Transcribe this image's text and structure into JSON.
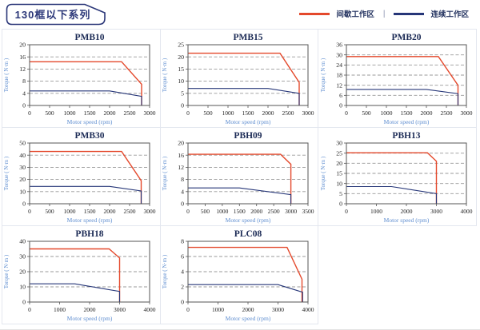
{
  "header": {
    "title": "130框以下系列",
    "legend_separator": "|",
    "legend_items": [
      {
        "label": "间歇工作区",
        "color": "#e4492c"
      },
      {
        "label": "连续工作区",
        "color": "#263678"
      }
    ]
  },
  "colors": {
    "intermittent": "#e4492c",
    "continuous": "#263678",
    "grid_line": "#999999",
    "plot_border": "#555555",
    "tick_text": "#222222",
    "chart_title": "#1b2a55",
    "axis_label": "#5f8ed0",
    "tag_outline": "#2a3678",
    "cell_border": "#e3e7ef"
  },
  "chart_data": [
    {
      "type": "line",
      "title": "PMB10",
      "xlabel": "Motor speed (rpm)",
      "ylabel": "Torque ( N·m )",
      "xlim": [
        0,
        3000
      ],
      "ylim": [
        0,
        20
      ],
      "xticks": [
        0,
        500,
        1000,
        1500,
        2000,
        2500,
        3000
      ],
      "yticks": [
        0,
        4,
        8,
        12,
        16,
        20
      ],
      "series": [
        {
          "name": "间歇工作区",
          "key": "intermittent",
          "points": [
            [
              0,
              14.4
            ],
            [
              2300,
              14.4
            ],
            [
              2800,
              7
            ],
            [
              2800,
              0
            ]
          ]
        },
        {
          "name": "连续工作区",
          "key": "continuous",
          "points": [
            [
              0,
              4.8
            ],
            [
              2000,
              4.8
            ],
            [
              2800,
              3
            ],
            [
              2800,
              0
            ]
          ]
        }
      ]
    },
    {
      "type": "line",
      "title": "PMB15",
      "xlabel": "Motor speed (rpm)",
      "ylabel": "Torque ( N·m )",
      "xlim": [
        0,
        3000
      ],
      "ylim": [
        0,
        25
      ],
      "xticks": [
        0,
        500,
        1000,
        1500,
        2000,
        2500,
        3000
      ],
      "yticks": [
        0,
        5,
        10,
        15,
        20,
        25
      ],
      "series": [
        {
          "name": "间歇工作区",
          "key": "intermittent",
          "points": [
            [
              0,
              21.5
            ],
            [
              2300,
              21.5
            ],
            [
              2780,
              9.5
            ],
            [
              2780,
              0
            ]
          ]
        },
        {
          "name": "连续工作区",
          "key": "continuous",
          "points": [
            [
              0,
              7
            ],
            [
              2000,
              7
            ],
            [
              2780,
              5
            ],
            [
              2780,
              0
            ]
          ]
        }
      ]
    },
    {
      "type": "line",
      "title": "PMB20",
      "xlabel": "Motor speed (rpm)",
      "ylabel": "Torque ( N·m )",
      "xlim": [
        0,
        3000
      ],
      "ylim": [
        0,
        36
      ],
      "xticks": [
        0,
        500,
        1000,
        1500,
        2000,
        2500,
        3000
      ],
      "yticks": [
        0,
        6,
        12,
        18,
        24,
        30,
        36
      ],
      "series": [
        {
          "name": "间歇工作区",
          "key": "intermittent",
          "points": [
            [
              0,
              29
            ],
            [
              2300,
              29
            ],
            [
              2790,
              12
            ],
            [
              2790,
              0
            ]
          ]
        },
        {
          "name": "连续工作区",
          "key": "continuous",
          "points": [
            [
              0,
              9.5
            ],
            [
              2000,
              9.5
            ],
            [
              2790,
              7
            ],
            [
              2790,
              0
            ]
          ]
        }
      ]
    },
    {
      "type": "line",
      "title": "PMB30",
      "xlabel": "Motor speed (rpm)",
      "ylabel": "Torque ( N·m )",
      "xlim": [
        0,
        3000
      ],
      "ylim": [
        0,
        50
      ],
      "xticks": [
        0,
        500,
        1000,
        1500,
        2000,
        2500,
        3000
      ],
      "yticks": [
        0,
        10,
        20,
        30,
        40,
        50
      ],
      "series": [
        {
          "name": "间歇工作区",
          "key": "intermittent",
          "points": [
            [
              0,
              43
            ],
            [
              2300,
              43
            ],
            [
              2790,
              19
            ],
            [
              2790,
              0
            ]
          ]
        },
        {
          "name": "连续工作区",
          "key": "continuous",
          "points": [
            [
              0,
              14.3
            ],
            [
              2000,
              14.3
            ],
            [
              2790,
              10.5
            ],
            [
              2790,
              0
            ]
          ]
        }
      ]
    },
    {
      "type": "line",
      "title": "PBH09",
      "xlabel": "Motor speed (rpm)",
      "ylabel": "Torque ( N·m )",
      "xlim": [
        0,
        3500
      ],
      "ylim": [
        0,
        20
      ],
      "xticks": [
        0,
        500,
        1000,
        1500,
        2000,
        2500,
        3000,
        3500
      ],
      "yticks": [
        0,
        4,
        8,
        12,
        16,
        20
      ],
      "series": [
        {
          "name": "间歇工作区",
          "key": "intermittent",
          "points": [
            [
              0,
              16.3
            ],
            [
              2700,
              16.3
            ],
            [
              3000,
              13
            ],
            [
              3000,
              0
            ]
          ]
        },
        {
          "name": "连续工作区",
          "key": "continuous",
          "points": [
            [
              0,
              5.2
            ],
            [
              1500,
              5.2
            ],
            [
              3000,
              3
            ],
            [
              3000,
              0
            ]
          ]
        }
      ]
    },
    {
      "type": "line",
      "title": "PBH13",
      "xlabel": "Motor speed (rpm)",
      "ylabel": "Torque ( N·m )",
      "xlim": [
        0,
        4000
      ],
      "ylim": [
        0,
        30
      ],
      "xticks": [
        0,
        1000,
        2000,
        3000,
        4000
      ],
      "yticks": [
        0,
        5,
        10,
        15,
        20,
        25,
        30
      ],
      "series": [
        {
          "name": "间歇工作区",
          "key": "intermittent",
          "points": [
            [
              0,
              25.2
            ],
            [
              2700,
              25.2
            ],
            [
              3000,
              21
            ],
            [
              3000,
              0
            ]
          ]
        },
        {
          "name": "连续工作区",
          "key": "continuous",
          "points": [
            [
              0,
              8.5
            ],
            [
              1500,
              8.5
            ],
            [
              3000,
              5
            ],
            [
              3000,
              0
            ]
          ]
        }
      ]
    },
    {
      "type": "line",
      "title": "PBH18",
      "xlabel": "Motor speed (rpm)",
      "ylabel": "Torque ( N·m )",
      "xlim": [
        0,
        4000
      ],
      "ylim": [
        0,
        40
      ],
      "xticks": [
        0,
        1000,
        2000,
        3000,
        4000
      ],
      "yticks": [
        0,
        10,
        20,
        30,
        40
      ],
      "series": [
        {
          "name": "间歇工作区",
          "key": "intermittent",
          "points": [
            [
              0,
              35
            ],
            [
              2650,
              35
            ],
            [
              3000,
              29
            ],
            [
              3000,
              0
            ]
          ]
        },
        {
          "name": "连续工作区",
          "key": "continuous",
          "points": [
            [
              0,
              12
            ],
            [
              1500,
              12
            ],
            [
              3000,
              7
            ],
            [
              3000,
              0
            ]
          ]
        }
      ]
    },
    {
      "type": "line",
      "title": "PLC08",
      "xlabel": "Motor speed (rpm)",
      "ylabel": "Torque ( N·m )",
      "xlim": [
        0,
        4000
      ],
      "ylim": [
        0,
        8
      ],
      "xticks": [
        0,
        1000,
        2000,
        3000,
        4000
      ],
      "yticks": [
        0,
        2,
        4,
        6,
        8
      ],
      "series": [
        {
          "name": "间歇工作区",
          "key": "intermittent",
          "points": [
            [
              0,
              7.2
            ],
            [
              3300,
              7.2
            ],
            [
              3800,
              3
            ],
            [
              3800,
              0
            ]
          ]
        },
        {
          "name": "连续工作区",
          "key": "continuous",
          "points": [
            [
              0,
              2.3
            ],
            [
              3000,
              2.3
            ],
            [
              3820,
              1.3
            ],
            [
              3820,
              0
            ]
          ]
        }
      ]
    }
  ]
}
